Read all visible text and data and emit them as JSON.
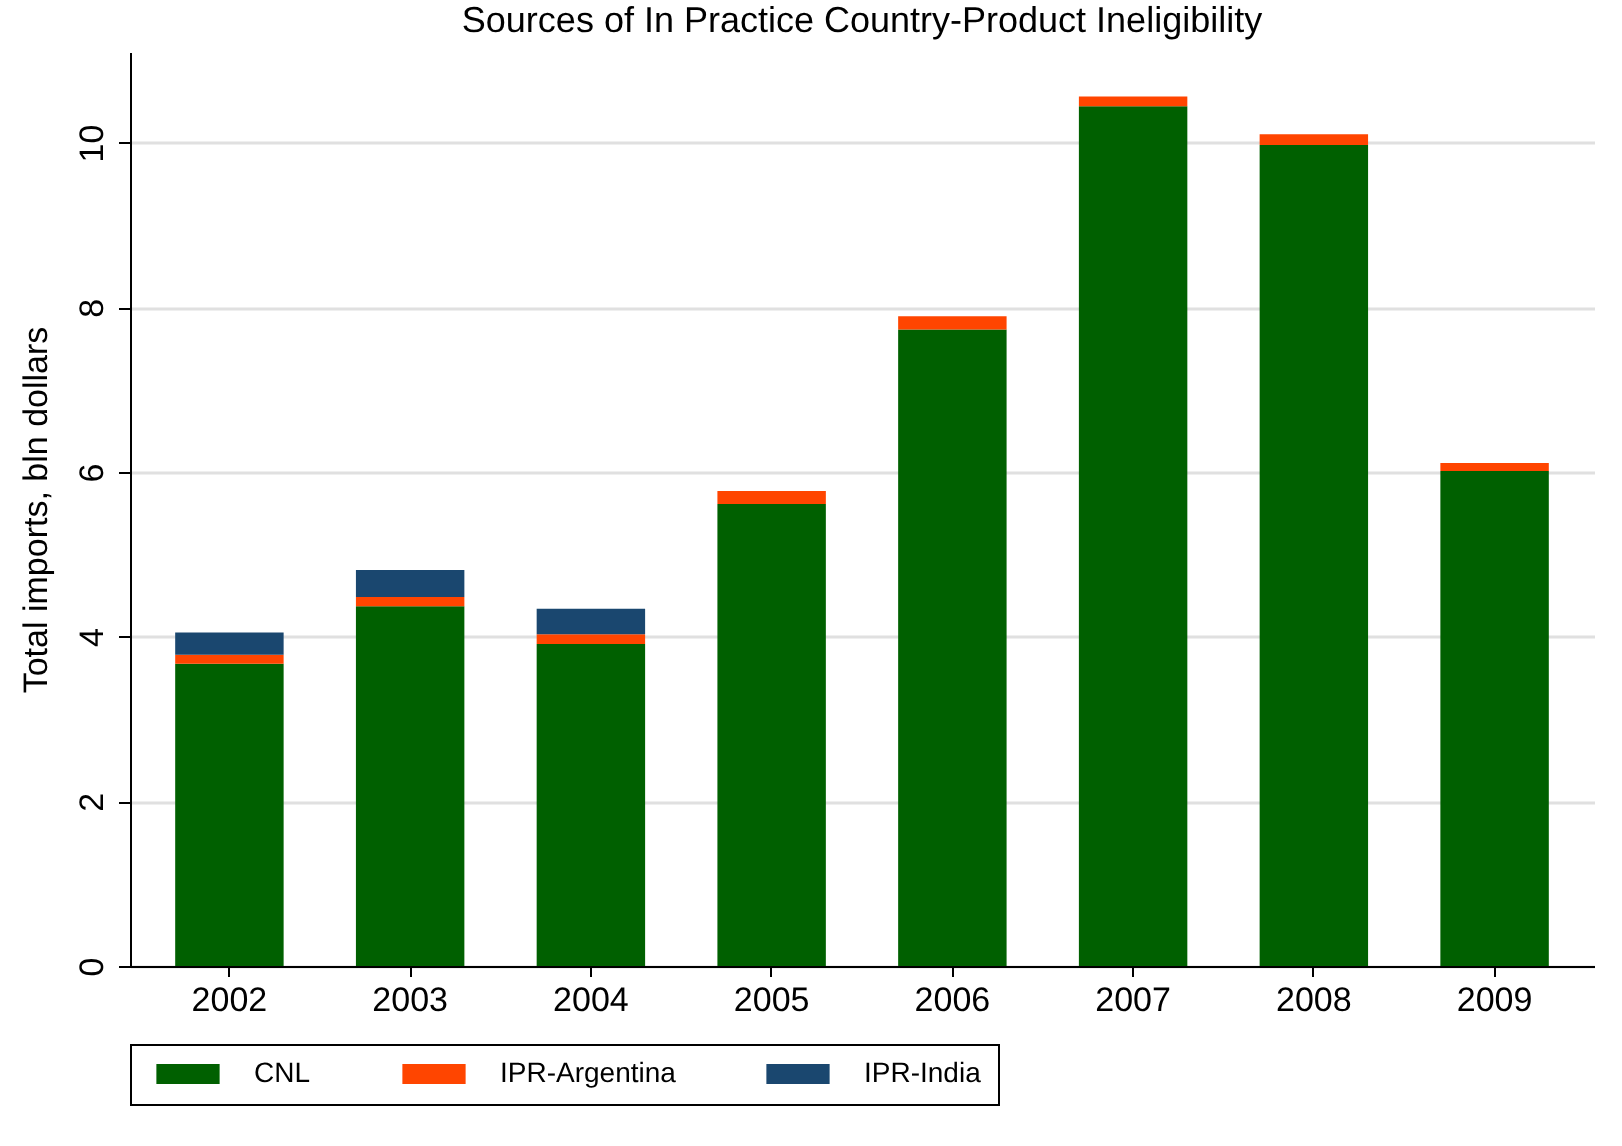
{
  "chart_data": {
    "type": "bar",
    "title": "Sources of In Practice Country-Product Ineligibility",
    "ylabel": "Total imports, bln dollars",
    "categories": [
      "2002",
      "2003",
      "2004",
      "2005",
      "2006",
      "2007",
      "2008",
      "2009"
    ],
    "stacked": true,
    "series": [
      {
        "name": "CNL",
        "color": "#006000",
        "values": [
          3.67,
          4.37,
          3.91,
          5.61,
          7.73,
          10.44,
          9.97,
          6.01
        ]
      },
      {
        "name": "IPR-Argentina",
        "color": "#ff4500",
        "values": [
          0.11,
          0.11,
          0.12,
          0.16,
          0.16,
          0.12,
          0.13,
          0.1
        ]
      },
      {
        "name": "IPR-India",
        "color": "#1a476f",
        "values": [
          0.27,
          0.33,
          0.31,
          0,
          0,
          0,
          0,
          0
        ]
      }
    ],
    "ylim": [
      0,
      11.1
    ],
    "yticks": [
      0,
      2,
      4,
      6,
      8,
      10
    ],
    "grid": "y",
    "legend": "bottom"
  }
}
